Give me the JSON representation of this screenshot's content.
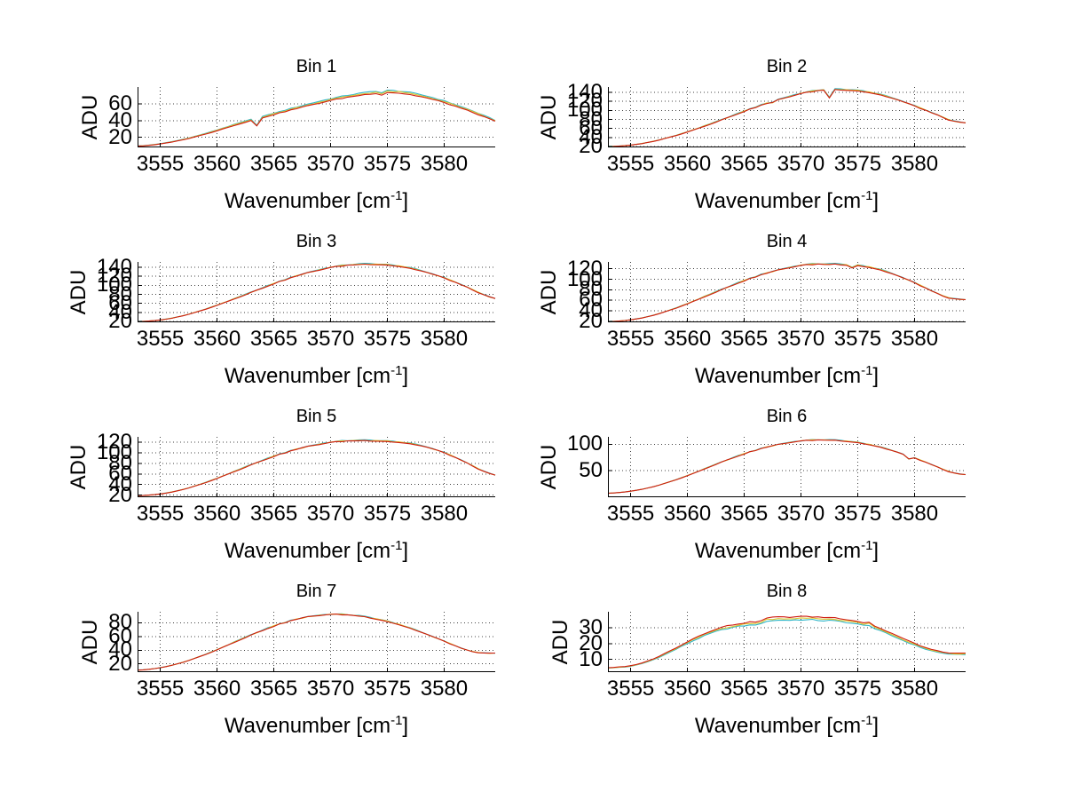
{
  "figure": {
    "background": "#ffffff",
    "text_color": "#000000",
    "axis_color": "#000000",
    "grid_style": "dotted",
    "grid_color": "#444444"
  },
  "shared": {
    "ylabel": "ADU",
    "xlabel_prefix": "Wavenumber [cm",
    "xlabel_sup": "-1",
    "xlabel_suffix": "]",
    "xlim": [
      3553,
      3584.5
    ],
    "x_ticks": [
      3555,
      3560,
      3565,
      3570,
      3575,
      3580
    ],
    "x_start": 3553,
    "x_step": 0.5,
    "grid": "on",
    "legend": "none"
  },
  "chart_data": [
    {
      "type": "line",
      "title": "Bin 1",
      "ylim": [
        8,
        80
      ],
      "y_ticks": [
        20,
        40,
        60
      ],
      "noise": 0.6,
      "series": [
        {
          "name": "cyan-line",
          "color": "#2fb6c9",
          "scale": 1.035
        },
        {
          "name": "yellow-line",
          "color": "#ddc52f",
          "scale": 1.018
        },
        {
          "name": "red-line",
          "color": "#cf1d12",
          "scale": 1.0
        }
      ],
      "values": [
        9.5,
        9.8,
        10.4,
        11.1,
        12.0,
        13.1,
        14.3,
        15.6,
        17.1,
        18.6,
        20.3,
        22.1,
        24.0,
        25.9,
        27.9,
        30.0,
        32.0,
        34.1,
        36.1,
        38.1,
        40.0,
        33.5,
        43.3,
        45.2,
        47.1,
        48.9,
        50.7,
        52.5,
        54.2,
        55.9,
        57.6,
        59.2,
        60.8,
        62.3,
        63.8,
        65.2,
        66.5,
        67.7,
        68.9,
        69.9,
        70.9,
        71.8,
        72.6,
        70.6,
        73.4,
        73.2,
        72.7,
        71.9,
        70.9,
        69.7,
        68.3,
        66.8,
        65.1,
        63.3,
        61.3,
        59.2,
        57.0,
        54.7,
        52.3,
        49.8,
        47.2,
        44.5,
        41.8,
        39.0
      ]
    },
    {
      "type": "line",
      "title": "Bin 2",
      "ylim": [
        18,
        152
      ],
      "y_ticks": [
        20,
        40,
        60,
        80,
        100,
        120,
        140
      ],
      "noise": 1.1,
      "series": [
        {
          "name": "cyan-line",
          "color": "#2fb6c9",
          "scale": 1.01
        },
        {
          "name": "yellow-line",
          "color": "#ddc52f",
          "scale": 1.005
        },
        {
          "name": "red-line",
          "color": "#cf1d12",
          "scale": 1.0
        }
      ],
      "values": [
        20.0,
        20.3,
        20.9,
        21.8,
        23.0,
        24.6,
        26.5,
        28.8,
        31.4,
        34.3,
        37.5,
        40.9,
        44.5,
        48.3,
        52.3,
        56.4,
        60.7,
        65.1,
        69.6,
        74.2,
        78.9,
        83.6,
        88.4,
        93.1,
        97.8,
        102.4,
        106.9,
        111.3,
        115.6,
        117.2,
        123.6,
        127.3,
        130.8,
        134.1,
        137.0,
        139.6,
        141.9,
        143.8,
        145.3,
        128.0,
        146.2,
        146.0,
        145.4,
        144.5,
        143.3,
        141.7,
        139.6,
        137.1,
        134.2,
        130.9,
        127.3,
        123.4,
        119.1,
        114.6,
        109.9,
        105.0,
        100.0,
        94.8,
        89.6,
        84.3,
        79.0,
        75.6,
        73.4,
        72.0
      ]
    },
    {
      "type": "line",
      "title": "Bin 3",
      "ylim": [
        18,
        152
      ],
      "y_ticks": [
        20,
        40,
        60,
        80,
        100,
        120,
        140
      ],
      "noise": 1.1,
      "series": [
        {
          "name": "cyan-line",
          "color": "#2fb6c9",
          "scale": 1.008
        },
        {
          "name": "yellow-line",
          "color": "#ddc52f",
          "scale": 1.004
        },
        {
          "name": "red-line",
          "color": "#cf1d12",
          "scale": 1.0
        }
      ],
      "values": [
        19.8,
        20.1,
        20.7,
        21.7,
        23.1,
        24.9,
        27.1,
        29.7,
        32.6,
        35.9,
        39.4,
        43.2,
        47.2,
        51.4,
        55.8,
        60.3,
        65.0,
        69.7,
        74.5,
        79.4,
        84.3,
        89.2,
        94.0,
        98.8,
        103.5,
        108.0,
        112.4,
        116.6,
        120.6,
        124.4,
        127.9,
        131.2,
        134.2,
        136.9,
        139.3,
        141.4,
        143.2,
        144.6,
        145.7,
        146.4,
        146.8,
        146.9,
        146.6,
        146.0,
        145.0,
        143.7,
        142.0,
        140.0,
        137.6,
        134.9,
        131.8,
        128.4,
        124.7,
        120.6,
        116.2,
        111.5,
        106.5,
        101.2,
        95.7,
        90.0,
        84.2,
        78.7,
        74.0,
        70.5
      ]
    },
    {
      "type": "line",
      "title": "Bin 4",
      "ylim": [
        18,
        133
      ],
      "y_ticks": [
        20,
        40,
        60,
        80,
        100,
        120
      ],
      "noise": 1.0,
      "series": [
        {
          "name": "cyan-line",
          "color": "#2fb6c9",
          "scale": 1.008
        },
        {
          "name": "yellow-line",
          "color": "#ddc52f",
          "scale": 1.004
        },
        {
          "name": "red-line",
          "color": "#cf1d12",
          "scale": 1.0
        }
      ],
      "values": [
        19.5,
        19.8,
        20.4,
        21.3,
        22.6,
        24.3,
        26.3,
        28.7,
        31.4,
        34.5,
        37.8,
        41.4,
        45.2,
        49.2,
        53.4,
        57.7,
        62.1,
        66.6,
        71.1,
        75.6,
        80.1,
        84.5,
        88.8,
        93.0,
        97.1,
        101.0,
        104.7,
        108.2,
        111.5,
        114.6,
        117.4,
        120.0,
        122.3,
        124.3,
        126.0,
        127.3,
        128.2,
        128.7,
        128.6,
        128.3,
        128.8,
        128.0,
        127.4,
        122.0,
        126.0,
        124.5,
        122.6,
        120.2,
        117.4,
        114.2,
        110.6,
        106.7,
        102.4,
        97.9,
        93.1,
        88.1,
        83.0,
        77.8,
        72.6,
        68.0,
        64.5,
        62.5,
        61.4,
        60.8
      ]
    },
    {
      "type": "line",
      "title": "Bin 5",
      "ylim": [
        16,
        130
      ],
      "y_ticks": [
        20,
        40,
        60,
        80,
        100,
        120
      ],
      "noise": 0.9,
      "series": [
        {
          "name": "cyan-line",
          "color": "#2fb6c9",
          "scale": 1.008
        },
        {
          "name": "yellow-line",
          "color": "#ddc52f",
          "scale": 1.004
        },
        {
          "name": "red-line",
          "color": "#cf1d12",
          "scale": 1.0
        }
      ],
      "values": [
        19.0,
        19.3,
        19.9,
        20.8,
        22.1,
        23.7,
        25.7,
        28.0,
        30.6,
        33.5,
        36.7,
        40.1,
        43.8,
        47.6,
        51.6,
        55.7,
        59.9,
        64.2,
        68.5,
        72.8,
        77.0,
        81.2,
        85.3,
        89.2,
        93.0,
        96.6,
        100.0,
        103.3,
        106.3,
        109.1,
        111.6,
        113.9,
        115.9,
        117.7,
        119.2,
        120.4,
        121.4,
        122.1,
        122.6,
        122.8,
        122.9,
        122.7,
        122.4,
        121.9,
        121.3,
        120.5,
        119.5,
        118.3,
        116.8,
        115.0,
        112.8,
        110.2,
        107.2,
        103.7,
        99.8,
        95.5,
        90.8,
        85.8,
        80.5,
        75.0,
        69.5,
        64.5,
        60.5,
        57.5
      ]
    },
    {
      "type": "line",
      "title": "Bin 6",
      "ylim": [
        0,
        114
      ],
      "y_ticks": [
        50,
        100
      ],
      "noise": 0.8,
      "series": [
        {
          "name": "cyan-line",
          "color": "#2fb6c9",
          "scale": 1.006
        },
        {
          "name": "yellow-line",
          "color": "#ddc52f",
          "scale": 1.003
        },
        {
          "name": "red-line",
          "color": "#cf1d12",
          "scale": 1.0
        }
      ],
      "values": [
        7.5,
        8.0,
        8.8,
        9.9,
        11.3,
        13.0,
        15.0,
        17.3,
        19.9,
        22.8,
        26.0,
        29.4,
        33.0,
        36.8,
        40.8,
        44.9,
        49.1,
        53.4,
        57.7,
        62.0,
        66.2,
        70.3,
        74.3,
        78.1,
        81.8,
        85.3,
        88.6,
        91.7,
        94.5,
        97.1,
        99.4,
        101.5,
        103.3,
        104.8,
        106.0,
        107.0,
        107.6,
        108.0,
        108.1,
        107.9,
        107.5,
        106.8,
        105.8,
        104.5,
        103.0,
        101.2,
        99.1,
        96.8,
        94.2,
        91.3,
        88.2,
        84.8,
        81.1,
        72.0,
        74.0,
        70.0,
        66.0,
        61.5,
        57.0,
        52.5,
        48.5,
        45.5,
        43.5,
        42.5
      ]
    },
    {
      "type": "line",
      "title": "Bin 7",
      "ylim": [
        8,
        96
      ],
      "y_ticks": [
        20,
        40,
        60,
        80
      ],
      "noise": 0.7,
      "series": [
        {
          "name": "cyan-line",
          "color": "#2fb6c9",
          "scale": 1.006
        },
        {
          "name": "yellow-line",
          "color": "#ddc52f",
          "scale": 1.003
        },
        {
          "name": "red-line",
          "color": "#cf1d12",
          "scale": 1.0
        }
      ],
      "values": [
        11.0,
        11.4,
        12.1,
        13.1,
        14.4,
        16.0,
        17.9,
        20.0,
        22.4,
        25.0,
        27.8,
        30.8,
        34.0,
        37.3,
        40.7,
        44.2,
        47.8,
        51.4,
        55.0,
        58.6,
        62.1,
        65.5,
        68.8,
        72.0,
        75.0,
        77.8,
        80.4,
        82.8,
        85.0,
        86.9,
        88.5,
        89.8,
        90.8,
        91.5,
        91.9,
        92.0,
        91.8,
        91.4,
        90.7,
        89.8,
        88.6,
        87.2,
        85.6,
        83.8,
        81.8,
        79.6,
        77.2,
        74.6,
        71.9,
        69.0,
        66.0,
        62.9,
        59.7,
        56.4,
        53.0,
        49.6,
        46.2,
        42.9,
        40.0,
        37.8,
        36.4,
        35.7,
        35.5,
        35.6
      ]
    },
    {
      "type": "line",
      "title": "Bin 8",
      "ylim": [
        2,
        40
      ],
      "y_ticks": [
        10,
        20,
        30
      ],
      "noise": 0.4,
      "series": [
        {
          "name": "cyan-line",
          "color": "#2fb6c9",
          "scale": 0.945
        },
        {
          "name": "yellow-line",
          "color": "#ddc52f",
          "scale": 0.972
        },
        {
          "name": "red-line",
          "color": "#cf1d12",
          "scale": 1.0
        }
      ],
      "values": [
        4.8,
        5.0,
        5.3,
        5.5,
        6.0,
        6.8,
        7.8,
        9.0,
        10.4,
        12.0,
        13.7,
        15.5,
        17.4,
        19.3,
        21.2,
        23.0,
        24.7,
        26.3,
        27.8,
        29.1,
        30.2,
        31.1,
        31.9,
        32.5,
        33.0,
        33.4,
        33.8,
        34.2,
        36.2,
        36.5,
        36.6,
        36.8,
        36.7,
        36.9,
        37.0,
        36.8,
        36.9,
        36.7,
        36.4,
        36.5,
        36.2,
        35.8,
        35.3,
        34.7,
        34.0,
        33.2,
        33.5,
        31.0,
        29.5,
        28.0,
        26.4,
        24.8,
        23.2,
        21.6,
        20.1,
        18.7,
        17.4,
        16.3,
        15.4,
        14.7,
        14.2,
        13.9,
        13.8,
        13.9
      ]
    }
  ]
}
